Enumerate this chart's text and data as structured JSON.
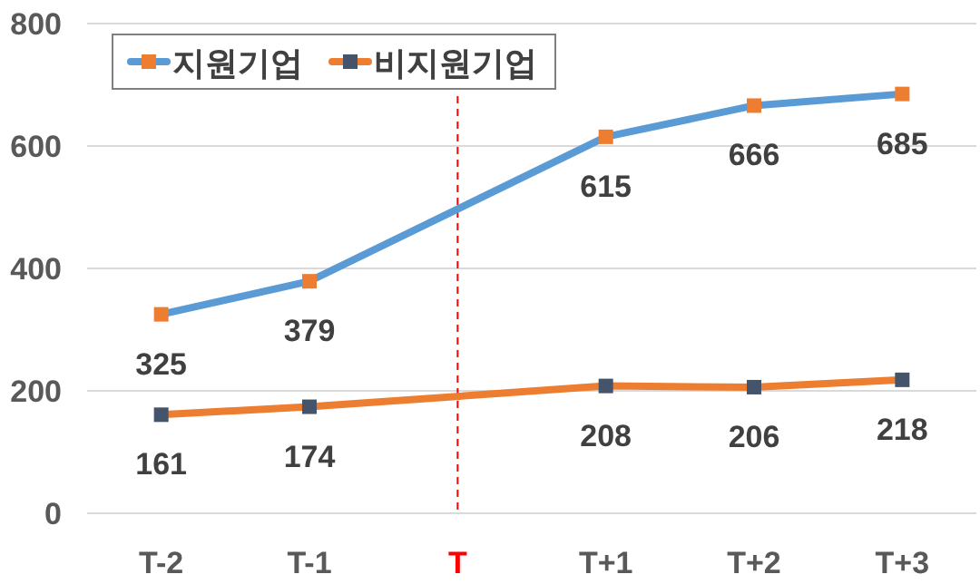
{
  "chart_data": {
    "type": "line",
    "categories": [
      "T-2",
      "T-1",
      "T",
      "T+1",
      "T+2",
      "T+3"
    ],
    "series": [
      {
        "name": "지원기업",
        "color": "#5b9bd5",
        "colors": [
          "#ed7d31",
          "#ed7d31",
          null,
          "#ed7d31",
          "#ed7d31",
          "#ed7d31"
        ],
        "values": [
          325,
          379,
          null,
          615,
          666,
          685
        ]
      },
      {
        "name": "비지원기업",
        "color": "#ed7d31",
        "colors": [
          "#44546a",
          "#44546a",
          null,
          "#44546a",
          "#44546a",
          "#44546a"
        ],
        "values": [
          161,
          174,
          null,
          208,
          206,
          218
        ]
      }
    ],
    "ylim": [
      0,
      800
    ],
    "yticks": [
      0,
      200,
      400,
      600,
      800
    ],
    "grid": "y",
    "legend": "top left",
    "marker": "square",
    "line_style": "solid",
    "data_labels": true,
    "ref_lines": [
      {
        "axis": "x",
        "value": "T",
        "color": "#ff0000",
        "line_style": "dashed"
      }
    ]
  }
}
